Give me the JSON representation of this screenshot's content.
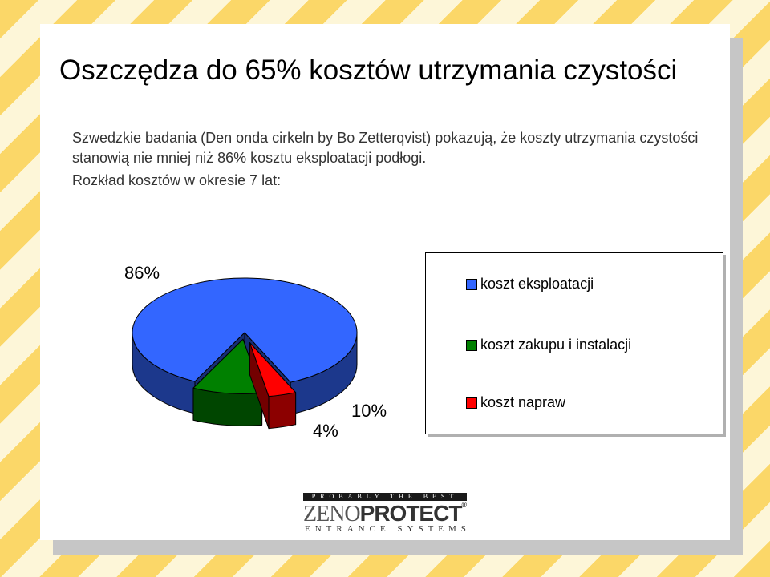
{
  "slide": {
    "title": "Oszczędza do 65% kosztów utrzymania czystości",
    "paragraph1": "Szwedzkie badania (Den onda cirkeln by Bo Zetterqvist) pokazują, że koszty utrzymania czystości stanowią nie mniej niż 86% kosztu eksploatacji podłogi.",
    "paragraph2": "Rozkład kosztów w okresie 7 lat:"
  },
  "chart_data": {
    "type": "pie",
    "categories": [
      "koszt eksploatacji",
      "koszt zakupu i instalacji",
      "koszt napraw"
    ],
    "values": [
      86,
      10,
      4
    ],
    "data_labels": [
      "86%",
      "10%",
      "4%"
    ],
    "colors": [
      "#3366ff",
      "#008000",
      "#ff0000"
    ],
    "style": "3d-exploded",
    "legend_position": "right"
  },
  "logo": {
    "tagline": "PROBABLY THE BEST",
    "brand_part1": "ZENO",
    "brand_part2": "PROTECT",
    "registered": "®",
    "subtitle": "ENTRANCE SYSTEMS"
  }
}
